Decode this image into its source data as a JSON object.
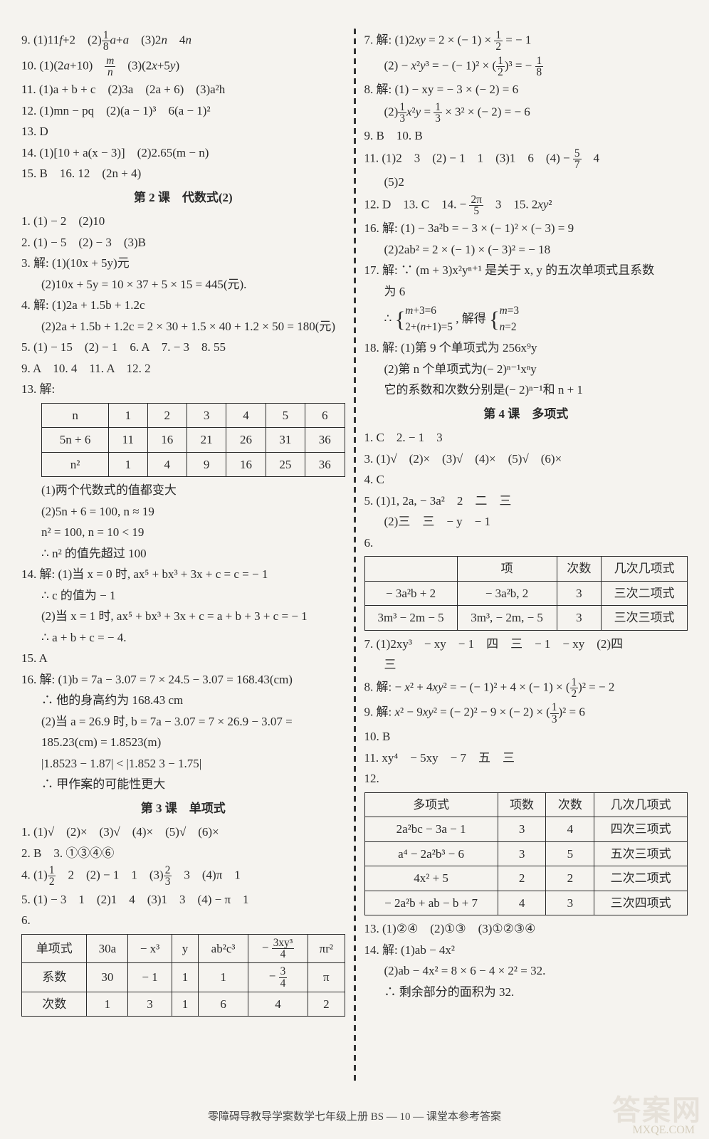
{
  "left": {
    "l9": "9. (1)11f + 2　(2) (1/8)a + a　(3)2n　4n",
    "l10": "10. (1)(2a + 10)　m/n　(3)(2x + 5y)",
    "l11": "11. (1)a + b + c　(2)3a　(2a + 6)　(3)a²h",
    "l12": "12. (1)mn − pq　(2)(a − 1)³　6(a − 1)²",
    "l13": "13. D",
    "l14": "14. (1)[10 + a(x − 3)]　(2)2.65(m − n)",
    "l15": "15. B　16. 12　(2n + 4)",
    "heading2": "第 2 课　代数式(2)",
    "l2_1": "1. (1) − 2　(2)10",
    "l2_2": "2. (1) − 5　(2) − 3　(3)B",
    "l2_3a": "3. 解: (1)(10x + 5y)元",
    "l2_3b": "(2)10x + 5y = 10 × 37 + 5 × 15 = 445(元).",
    "l2_4a": "4. 解: (1)2a + 1.5b + 1.2c",
    "l2_4b": "(2)2a + 1.5b + 1.2c = 2 × 30 + 1.5 × 40 + 1.2 × 50 = 180(元)",
    "l2_5": "5. (1) − 15　(2) − 1　6. A　7. − 3　8. 55",
    "l2_9": "9. A　10. 4　11. A　12. 2",
    "l2_13": "13. 解:",
    "table13": {
      "headers": [
        "n",
        "1",
        "2",
        "3",
        "4",
        "5",
        "6"
      ],
      "rows": [
        [
          "5n + 6",
          "11",
          "16",
          "21",
          "26",
          "31",
          "36"
        ],
        [
          "n²",
          "1",
          "4",
          "9",
          "16",
          "25",
          "36"
        ]
      ]
    },
    "l2_13_1": "(1)两个代数式的值都变大",
    "l2_13_2": "(2)5n + 6 = 100, n ≈ 19",
    "l2_13_3": "n² = 100, n = 10 < 19",
    "l2_13_4": "∴ n² 的值先超过 100",
    "l2_14a": "14. 解: (1)当 x = 0 时, ax⁵ + bx³ + 3x + c = c = − 1",
    "l2_14b": "∴ c 的值为 − 1",
    "l2_14c": "(2)当 x = 1 时, ax⁵ + bx³ + 3x + c = a + b + 3 + c = − 1",
    "l2_14d": "∴ a + b + c = − 4.",
    "l2_15": "15. A",
    "l2_16a": "16. 解: (1)b = 7a − 3.07 = 7 × 24.5 − 3.07 = 168.43(cm)",
    "l2_16b": "∴ 他的身高约为 168.43 cm",
    "l2_16c": "(2)当 a = 26.9 时, b = 7a − 3.07 = 7 × 26.9 − 3.07 =",
    "l2_16d": "185.23(cm) = 1.8523(m)",
    "l2_16e": "|1.8523 − 1.87| < |1.852 3 − 1.75|",
    "l2_16f": "∴ 甲作案的可能性更大",
    "heading3": "第 3 课　单项式",
    "l3_1": "1. (1)√　(2)×　(3)√　(4)×　(5)√　(6)×",
    "l3_2": "2. B　3. ①③④⑥",
    "l3_4": "4. (1) 1/2　2　(2) − 1　1　(3) 2/3　3　(4)π　1",
    "l3_5": "5. (1) − 3　1　(2)1　4　(3)1　3　(4) − π　1",
    "l3_6": "6.",
    "table6": {
      "headers": [
        "单项式",
        "30a",
        "− x³",
        "y",
        "ab²c³",
        "− 3xy³/4",
        "πr²"
      ],
      "rows": [
        [
          "系数",
          "30",
          "− 1",
          "1",
          "1",
          "− 3/4",
          "π"
        ],
        [
          "次数",
          "1",
          "3",
          "1",
          "6",
          "4",
          "2"
        ]
      ]
    }
  },
  "right": {
    "l3_7a": "7. 解: (1)2xy = 2 × (− 1) × 1/2 = − 1",
    "l3_7b": "(2) − x²y³ = − (− 1)² × (1/2)³ = − 1/8",
    "l3_8a": "8. 解: (1) − xy = − 3 × (− 2) = 6",
    "l3_8b": "(2) (1/3)x²y = (1/3) × 3² × (− 2) = − 6",
    "l3_9": "9. B　10. B",
    "l3_11": "11. (1)2　3　(2) − 1　1　(3)1　6　(4) − 5/7　4",
    "l3_11b": "(5)2",
    "l3_12": "12. D　13. C　14. − 2π/5　3　15. 2xy²",
    "l3_16a": "16. 解: (1) − 3a²b = − 3 × (− 1)² × (− 3) = 9",
    "l3_16b": "(2)2ab² = 2 × (− 1) × (− 3)² = − 18",
    "l3_17a": "17. 解: ∵ (m + 3)x²yⁿ⁺¹ 是关于 x, y 的五次单项式且系数",
    "l3_17b": "为 6",
    "l3_17c": "∴ { m + 3 = 6, 2 + (n + 1) = 5 }, 解得 { m = 3, n = 2 }",
    "l3_18a": "18. 解: (1)第 9 个单项式为 256x⁹y",
    "l3_18b": "(2)第 n 个单项式为(− 2)ⁿ⁻¹xⁿy",
    "l3_18c": "它的系数和次数分别是(− 2)ⁿ⁻¹和 n + 1",
    "heading4": "第 4 课　多项式",
    "l4_1": "1. C　2. − 1　3",
    "l4_3": "3. (1)√　(2)×　(3)√　(4)×　(5)√　(6)×",
    "l4_4": "4. C",
    "l4_5a": "5. (1)1, 2a, − 3a²　2　二　三",
    "l4_5b": "(2)三　三　− y　− 1",
    "l4_6": "6.",
    "table_r6": {
      "headers": [
        "",
        "项",
        "次数",
        "几次几项式"
      ],
      "rows": [
        [
          "− 3a²b + 2",
          "− 3a²b, 2",
          "3",
          "三次二项式"
        ],
        [
          "3m³ − 2m − 5",
          "3m³, − 2m, − 5",
          "3",
          "三次三项式"
        ]
      ]
    },
    "l4_7": "7. (1)2xy³　− xy　− 1　四　三　− 1　− xy　(2)四",
    "l4_7b": "三",
    "l4_8": "8. 解: − x² + 4xy² = − (− 1)² + 4 × (− 1) × (1/2)² = − 2",
    "l4_9": "9. 解: x² − 9xy² = (− 2)² − 9 × (− 2) × (1/3)² = 6",
    "l4_10": "10. B",
    "l4_11": "11. xy⁴　− 5xy　− 7　五　三",
    "l4_12": "12.",
    "table_r12": {
      "headers": [
        "多项式",
        "项数",
        "次数",
        "几次几项式"
      ],
      "rows": [
        [
          "2a²bc − 3a − 1",
          "3",
          "4",
          "四次三项式"
        ],
        [
          "a⁴ − 2a²b³ − 6",
          "3",
          "5",
          "五次三项式"
        ],
        [
          "4x² + 5",
          "2",
          "2",
          "二次二项式"
        ],
        [
          "− 2a²b + ab − b + 7",
          "4",
          "3",
          "三次四项式"
        ]
      ]
    },
    "l4_13": "13. (1)②④　(2)①③　(3)①②③④",
    "l4_14a": "14. 解: (1)ab − 4x²",
    "l4_14b": "(2)ab − 4x² = 8 × 6 − 4 × 2² = 32.",
    "l4_14c": "∴ 剩余部分的面积为 32."
  },
  "footer": "零障碍导教导学案数学七年级上册 BS — 10 — 课堂本参考答案",
  "wm1": "答案网",
  "wm2": "MXQE.COM"
}
